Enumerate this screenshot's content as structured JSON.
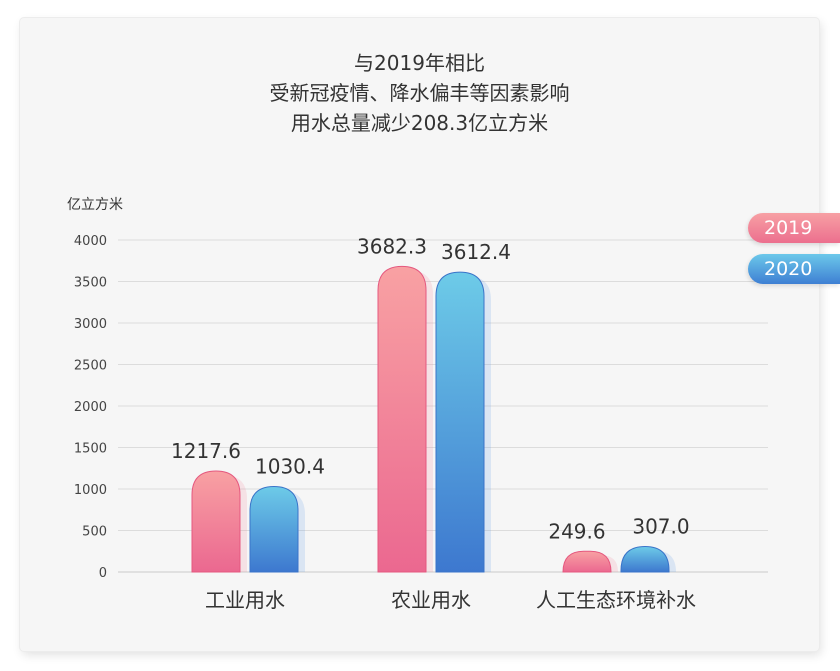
{
  "title_lines": [
    "与2019年相比",
    "受新冠疫情、降水偏丰等因素影响",
    "用水总量减少208.3亿立方米"
  ],
  "chart_data": {
    "type": "bar",
    "ylabel": "亿立方米",
    "ylim": [
      0,
      4000
    ],
    "yticks": [
      0,
      500,
      1000,
      1500,
      2000,
      2500,
      3000,
      3500,
      4000
    ],
    "categories": [
      "工业用水",
      "农业用水",
      "人工生态环境补水"
    ],
    "series": [
      {
        "name": "2019",
        "values": [
          1217.6,
          3682.3,
          249.6
        ],
        "labels": [
          "1217.6",
          "3682.3",
          "249.6"
        ]
      },
      {
        "name": "2020",
        "values": [
          1030.4,
          3612.4,
          307.0
        ],
        "labels": [
          "1030.4",
          "3612.4",
          "307.0"
        ]
      }
    ],
    "grid": true,
    "legend_position": "right"
  },
  "colors": {
    "series_2019_top": "#f8a1a3",
    "series_2019_bottom": "#eb6890",
    "series_2020_top": "#6dcbe8",
    "series_2020_bottom": "#3d78cf"
  }
}
